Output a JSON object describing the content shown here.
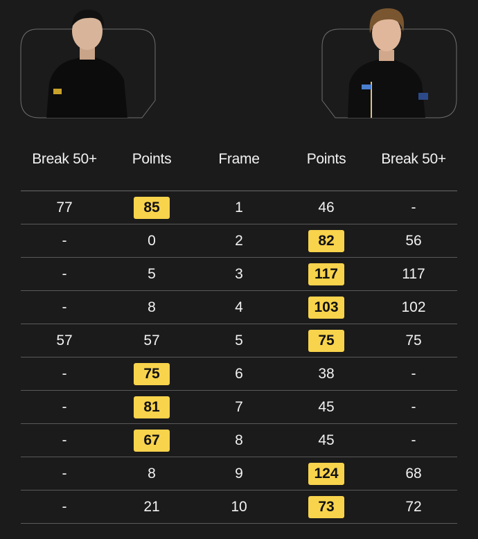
{
  "players": [
    {
      "side": "left",
      "photo": "player-left-photo"
    },
    {
      "side": "right",
      "photo": "player-right-photo"
    }
  ],
  "headers": [
    "Break 50+",
    "Points",
    "Frame",
    "Points",
    "Break 50+"
  ],
  "highlight_color": "#f8d34c",
  "rows": [
    {
      "lb": "77",
      "lp": "85",
      "f": "1",
      "rp": "46",
      "rb": "-",
      "win": "left"
    },
    {
      "lb": "-",
      "lp": "0",
      "f": "2",
      "rp": "82",
      "rb": "56",
      "win": "right"
    },
    {
      "lb": "-",
      "lp": "5",
      "f": "3",
      "rp": "117",
      "rb": "117",
      "win": "right"
    },
    {
      "lb": "-",
      "lp": "8",
      "f": "4",
      "rp": "103",
      "rb": "102",
      "win": "right"
    },
    {
      "lb": "57",
      "lp": "57",
      "f": "5",
      "rp": "75",
      "rb": "75",
      "win": "right"
    },
    {
      "lb": "-",
      "lp": "75",
      "f": "6",
      "rp": "38",
      "rb": "-",
      "win": "left"
    },
    {
      "lb": "-",
      "lp": "81",
      "f": "7",
      "rp": "45",
      "rb": "-",
      "win": "left"
    },
    {
      "lb": "-",
      "lp": "67",
      "f": "8",
      "rp": "45",
      "rb": "-",
      "win": "left"
    },
    {
      "lb": "-",
      "lp": "8",
      "f": "9",
      "rp": "124",
      "rb": "68",
      "win": "right"
    },
    {
      "lb": "-",
      "lp": "21",
      "f": "10",
      "rp": "73",
      "rb": "72",
      "win": "right"
    }
  ]
}
